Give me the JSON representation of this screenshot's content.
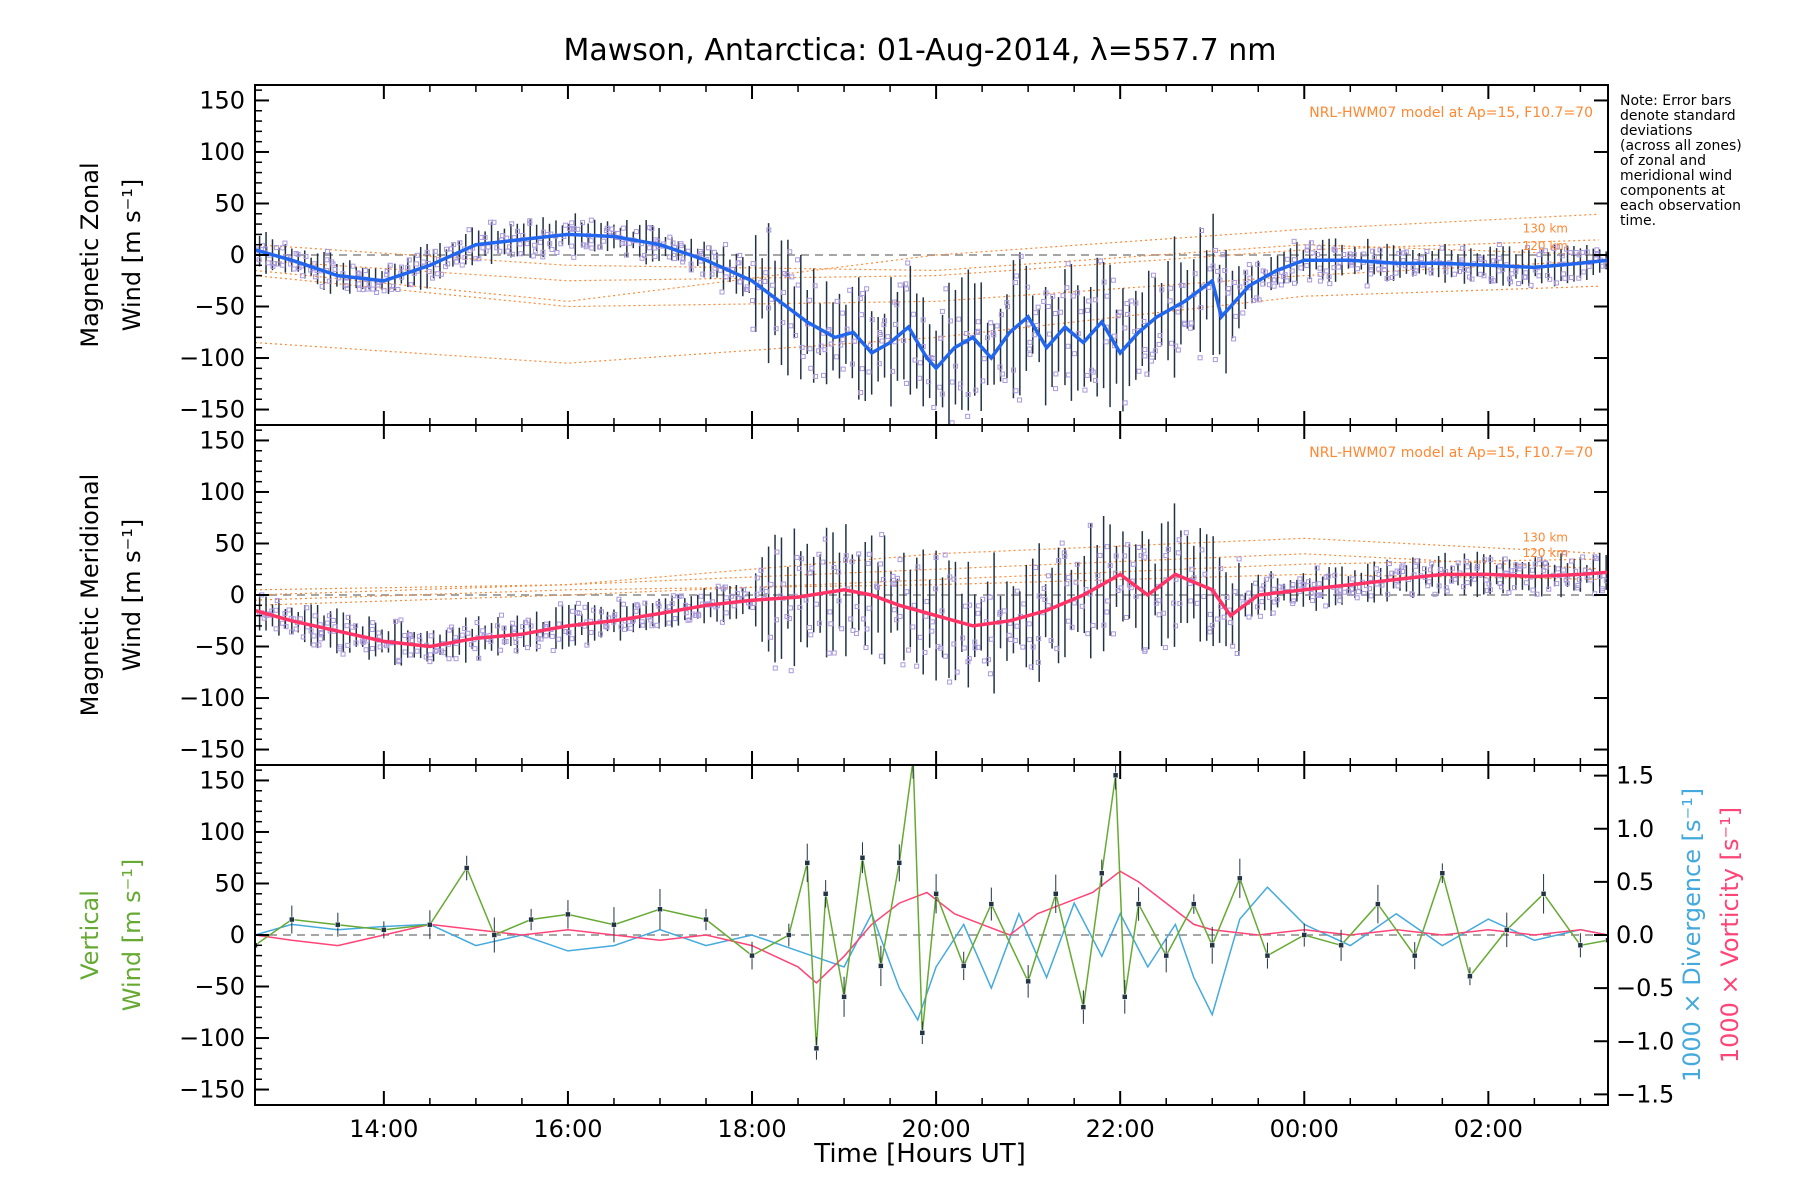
{
  "colors": {
    "zonal": "#2266ee",
    "meridional": "#ff3366",
    "vertical": "#66aa33",
    "divergence": "#44aadd",
    "vorticity": "#ff4477",
    "model": "#ff8833",
    "zones": "#aa99dd",
    "errorbar": "#223344"
  },
  "title": "Mawson, Antarctica: 01-Aug-2014, λ=557.7 nm",
  "note_lines": [
    "Note: Error bars",
    "denote standard",
    "deviations",
    "(across all zones)",
    "of zonal and",
    "meridional wind",
    "components at",
    "each observation",
    "time."
  ],
  "xlabel": "Time [Hours UT]",
  "model_label": "NRL-HWM07 model at Ap=15, F10.7=70",
  "chart_data": [
    {
      "type": "line",
      "panel": "zonal",
      "ylabel_lines": [
        "Magnetic Zonal",
        "Wind [m s⁻¹]"
      ],
      "xlim": [
        12.6,
        27.3
      ],
      "ylim": [
        -165,
        165
      ],
      "yticks": [
        -150,
        -100,
        -50,
        0,
        50,
        100,
        150
      ],
      "xticks": [
        14,
        16,
        18,
        20,
        22,
        24,
        26
      ],
      "xtick_labels": [
        "14:00",
        "16:00",
        "18:00",
        "20:00",
        "22:00",
        "00:00",
        "02:00"
      ],
      "km_labels": [
        "130 km",
        "120 km"
      ],
      "series": [
        {
          "x": [
            12.6,
            13.0,
            13.5,
            14.0,
            14.5,
            15.0,
            15.5,
            16.0,
            16.5,
            17.0,
            17.5,
            18.0,
            18.3,
            18.6,
            18.9,
            19.1,
            19.3,
            19.5,
            19.7,
            19.9,
            20.0,
            20.2,
            20.4,
            20.6,
            20.8,
            21.0,
            21.2,
            21.4,
            21.6,
            21.8,
            22.0,
            22.2,
            22.4,
            22.7,
            23.0,
            23.1,
            23.4,
            23.7,
            24.0,
            24.5,
            25.0,
            25.5,
            26.0,
            26.5,
            27.0,
            27.3
          ],
          "values": [
            5,
            -5,
            -20,
            -25,
            -10,
            10,
            15,
            20,
            18,
            10,
            -5,
            -25,
            -45,
            -65,
            -80,
            -75,
            -95,
            -85,
            -70,
            -100,
            -110,
            -90,
            -80,
            -100,
            -75,
            -60,
            -90,
            -70,
            -85,
            -65,
            -95,
            -75,
            -60,
            -45,
            -25,
            -60,
            -30,
            -15,
            -5,
            -5,
            -8,
            -8,
            -10,
            -12,
            -8,
            -5
          ]
        }
      ]
    },
    {
      "type": "line",
      "panel": "meridional",
      "ylabel_lines": [
        "Magnetic Meridional",
        "Wind [m s⁻¹]"
      ],
      "xlim": [
        12.6,
        27.3
      ],
      "ylim": [
        -165,
        165
      ],
      "yticks": [
        -150,
        -100,
        -50,
        0,
        50,
        100,
        150
      ],
      "km_labels": [
        "130 km",
        "120 km"
      ],
      "series": [
        {
          "x": [
            12.6,
            13.0,
            13.5,
            14.0,
            14.5,
            15.0,
            15.5,
            16.0,
            16.5,
            17.0,
            17.5,
            18.0,
            18.5,
            19.0,
            19.3,
            19.6,
            20.0,
            20.4,
            20.8,
            21.2,
            21.6,
            22.0,
            22.3,
            22.6,
            23.0,
            23.2,
            23.5,
            24.0,
            24.5,
            25.0,
            25.5,
            26.0,
            26.5,
            27.0,
            27.3
          ],
          "values": [
            -15,
            -25,
            -35,
            -45,
            -50,
            -42,
            -38,
            -30,
            -25,
            -18,
            -10,
            -5,
            -2,
            5,
            0,
            -10,
            -20,
            -30,
            -25,
            -15,
            0,
            20,
            0,
            20,
            5,
            -20,
            0,
            5,
            10,
            15,
            20,
            20,
            18,
            20,
            22
          ]
        }
      ]
    },
    {
      "type": "line",
      "panel": "vertical",
      "ylabel_lines": [
        "Vertical",
        "Wind [m s⁻¹]"
      ],
      "y2label_lines": [
        "1000 × Divergence [s⁻¹]",
        "1000 × Vorticity [s⁻¹]"
      ],
      "xlim": [
        12.6,
        27.3
      ],
      "ylim": [
        -165,
        165
      ],
      "yticks": [
        -150,
        -100,
        -50,
        0,
        50,
        100,
        150
      ],
      "y2lim": [
        -1.6,
        1.6
      ],
      "y2ticks": [
        -1.5,
        -1.0,
        -0.5,
        0.0,
        0.5,
        1.0,
        1.5
      ],
      "y2tick_labels": [
        "−1.5",
        "−1.0",
        "−0.5",
        "0.0",
        "0.5",
        "1.0",
        "1.5"
      ],
      "series": [
        {
          "name": "Vertical",
          "x": [
            12.6,
            13.0,
            13.5,
            14.0,
            14.5,
            14.9,
            15.2,
            15.6,
            16.0,
            16.5,
            17.0,
            17.5,
            18.0,
            18.4,
            18.6,
            18.7,
            18.8,
            19.0,
            19.2,
            19.4,
            19.6,
            19.75,
            19.85,
            20.0,
            20.3,
            20.6,
            21.0,
            21.3,
            21.6,
            21.8,
            21.95,
            22.05,
            22.2,
            22.5,
            22.8,
            23.0,
            23.3,
            23.6,
            24.0,
            24.4,
            24.8,
            25.2,
            25.5,
            25.8,
            26.2,
            26.6,
            27.0,
            27.3
          ],
          "values": [
            -10,
            15,
            10,
            5,
            10,
            65,
            0,
            15,
            20,
            10,
            25,
            15,
            -20,
            0,
            70,
            -110,
            40,
            -60,
            75,
            -30,
            70,
            170,
            -95,
            40,
            -30,
            30,
            -45,
            40,
            -70,
            60,
            155,
            -60,
            30,
            -20,
            30,
            -10,
            55,
            -20,
            0,
            -10,
            30,
            -20,
            60,
            -40,
            5,
            40,
            -10,
            -5
          ]
        },
        {
          "name": "Divergence",
          "x": [
            12.6,
            13.0,
            13.5,
            14.0,
            14.5,
            15.0,
            15.5,
            16.0,
            16.5,
            17.0,
            17.5,
            18.0,
            18.5,
            19.0,
            19.3,
            19.6,
            19.8,
            20.0,
            20.3,
            20.6,
            20.9,
            21.2,
            21.5,
            21.8,
            22.0,
            22.3,
            22.6,
            22.8,
            23.0,
            23.3,
            23.6,
            24.0,
            24.5,
            25.0,
            25.5,
            26.0,
            26.5,
            27.0,
            27.3
          ],
          "values": [
            0.0,
            0.1,
            0.05,
            0.08,
            0.1,
            -0.1,
            0.0,
            -0.15,
            -0.1,
            0.05,
            -0.1,
            0.0,
            -0.15,
            -0.3,
            0.2,
            -0.5,
            -0.8,
            -0.3,
            0.1,
            -0.5,
            0.2,
            -0.4,
            0.3,
            -0.2,
            0.2,
            -0.3,
            0.1,
            -0.4,
            -0.75,
            0.15,
            0.45,
            0.1,
            -0.1,
            0.2,
            -0.1,
            0.15,
            -0.05,
            0.05,
            0.0
          ]
        },
        {
          "name": "Vorticity",
          "x": [
            12.6,
            13.0,
            13.5,
            14.0,
            14.5,
            15.0,
            15.5,
            16.0,
            16.5,
            17.0,
            17.5,
            18.0,
            18.5,
            18.7,
            19.0,
            19.3,
            19.6,
            19.9,
            20.2,
            20.5,
            20.8,
            21.1,
            21.4,
            21.7,
            22.0,
            22.2,
            22.5,
            22.8,
            23.0,
            23.5,
            24.0,
            24.5,
            25.0,
            25.5,
            26.0,
            26.5,
            27.0,
            27.3
          ],
          "values": [
            0.0,
            -0.05,
            -0.1,
            0.0,
            0.1,
            0.05,
            0.0,
            0.05,
            0.0,
            -0.05,
            0.0,
            -0.1,
            -0.3,
            -0.45,
            -0.2,
            0.1,
            0.3,
            0.4,
            0.2,
            0.1,
            0.0,
            0.2,
            0.3,
            0.4,
            0.6,
            0.5,
            0.3,
            0.1,
            0.05,
            0.0,
            0.05,
            0.0,
            0.05,
            0.0,
            0.05,
            0.0,
            0.05,
            0.0
          ]
        }
      ]
    }
  ]
}
